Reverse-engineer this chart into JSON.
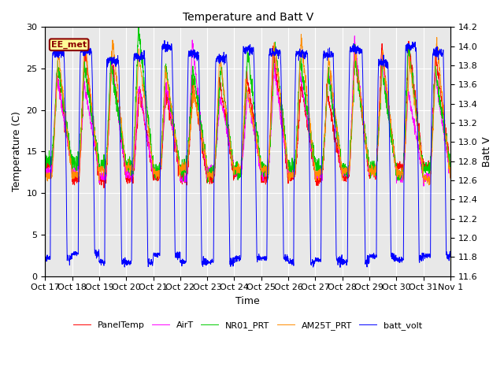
{
  "title": "Temperature and Batt V",
  "xlabel": "Time",
  "ylabel_left": "Temperature (C)",
  "ylabel_right": "Batt V",
  "annotation": "EE_met",
  "x_tick_labels": [
    "Oct 17",
    "Oct 18",
    "Oct 19",
    "Oct 20",
    "Oct 21",
    "Oct 22",
    "Oct 23",
    "Oct 24",
    "Oct 25",
    "Oct 26",
    "Oct 27",
    "Oct 28",
    "Oct 29",
    "Oct 30",
    "Oct 31",
    "Nov 1"
  ],
  "ylim_left": [
    0,
    30
  ],
  "ylim_right": [
    11.6,
    14.2
  ],
  "yticks_left": [
    0,
    5,
    10,
    15,
    20,
    25,
    30
  ],
  "yticks_right": [
    11.6,
    11.8,
    12.0,
    12.2,
    12.4,
    12.6,
    12.8,
    13.0,
    13.2,
    13.4,
    13.6,
    13.8,
    14.0,
    14.2
  ],
  "background_color": "#e8e8e8",
  "colors": {
    "PanelTemp": "#ff0000",
    "AirT": "#ff00ff",
    "NR01_PRT": "#00cc00",
    "AM25T_PRT": "#ff8c00",
    "batt_volt": "#0000ff"
  },
  "legend_entries": [
    "PanelTemp",
    "AirT",
    "NR01_PRT",
    "AM25T_PRT",
    "batt_volt"
  ],
  "num_days": 15,
  "points_per_day": 144,
  "batt_min": 11.6,
  "batt_max": 14.2,
  "temp_min": 0,
  "temp_max": 30,
  "figsize": [
    6.4,
    4.8
  ],
  "dpi": 100
}
